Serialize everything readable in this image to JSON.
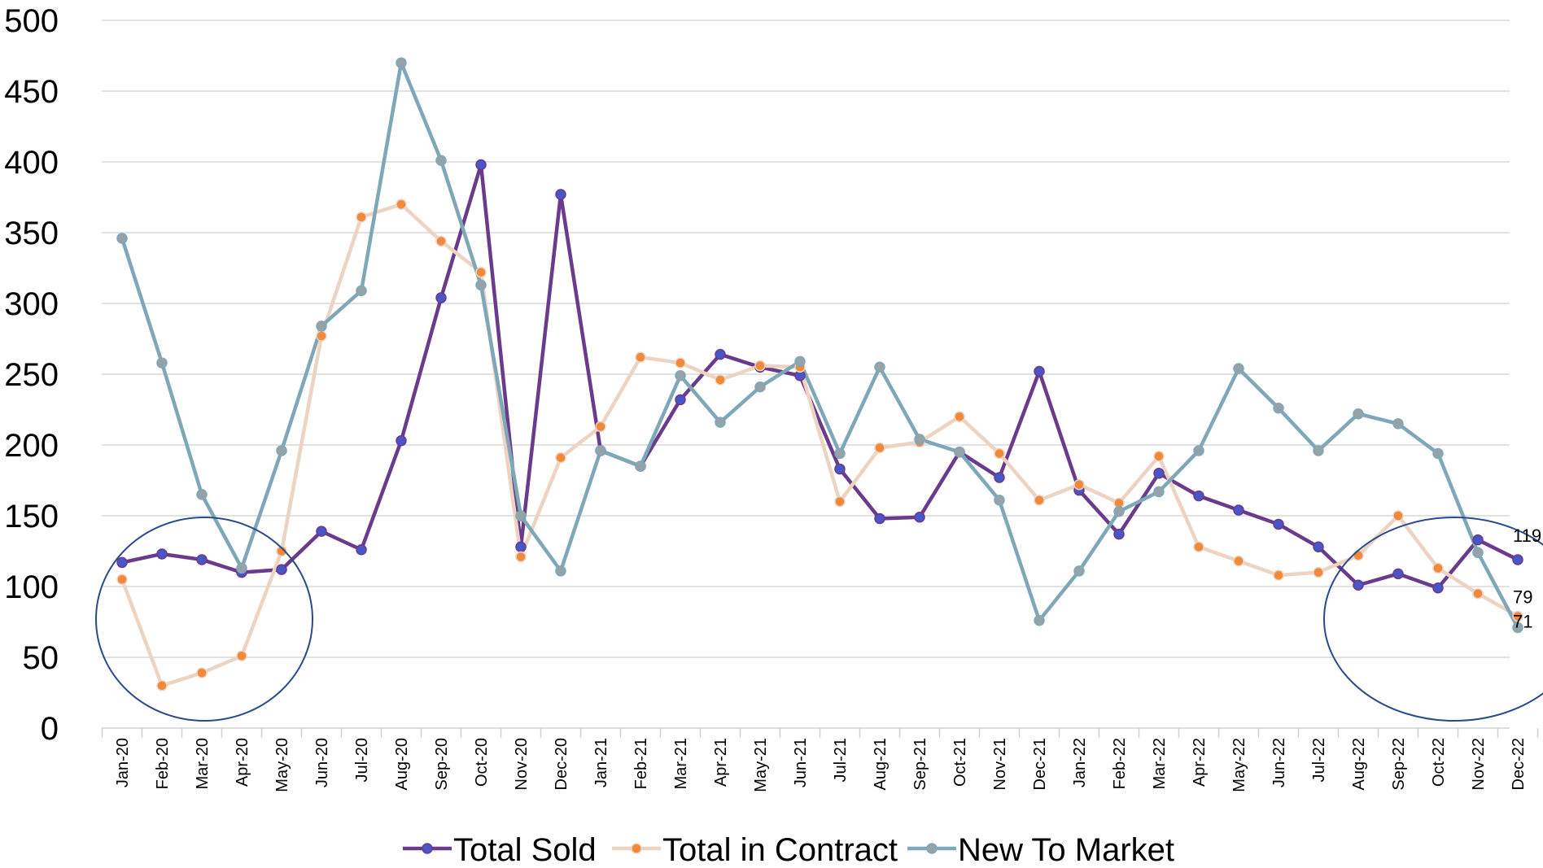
{
  "chart_data": {
    "type": "line",
    "categories": [
      "Jan-20",
      "Feb-20",
      "Mar-20",
      "Apr-20",
      "May-20",
      "Jun-20",
      "Jul-20",
      "Aug-20",
      "Sep-20",
      "Oct-20",
      "Nov-20",
      "Dec-20",
      "Jan-21",
      "Feb-21",
      "Mar-21",
      "Apr-21",
      "May-21",
      "Jun-21",
      "Jul-21",
      "Aug-21",
      "Sep-21",
      "Oct-21",
      "Nov-21",
      "Dec-21",
      "Jan-22",
      "Feb-22",
      "Mar-22",
      "Apr-22",
      "May-22",
      "Jun-22",
      "Jul-22",
      "Aug-22",
      "Sep-22",
      "Oct-22",
      "Nov-22",
      "Dec-22"
    ],
    "ylim": [
      0,
      500
    ],
    "yticks": [
      "0",
      "50",
      "100",
      "150",
      "200",
      "250",
      "300",
      "350",
      "400",
      "450",
      "500"
    ],
    "grid": true,
    "legend_position": "bottom",
    "series": [
      {
        "name": "Total Sold",
        "color": "#6a3a8c",
        "marker": "#4a55c8",
        "values": [
          117,
          123,
          119,
          110,
          112,
          139,
          126,
          203,
          304,
          398,
          128,
          377,
          196,
          185,
          232,
          264,
          255,
          249,
          183,
          148,
          149,
          195,
          177,
          252,
          168,
          137,
          180,
          164,
          154,
          144,
          128,
          101,
          109,
          99,
          133,
          119
        ]
      },
      {
        "name": "Total in Contract",
        "color": "#ecd3c2",
        "marker": "#f0893a",
        "values": [
          105,
          30,
          39,
          51,
          125,
          277,
          361,
          370,
          344,
          322,
          121,
          191,
          213,
          262,
          258,
          246,
          256,
          255,
          160,
          198,
          202,
          220,
          194,
          161,
          172,
          159,
          192,
          128,
          118,
          108,
          110,
          122,
          150,
          113,
          95,
          79
        ]
      },
      {
        "name": "New To Market",
        "color": "#7ea8b8",
        "marker": "#95a3a9",
        "values": [
          346,
          258,
          165,
          113,
          196,
          284,
          309,
          470,
          401,
          313,
          150,
          111,
          196,
          185,
          249,
          216,
          241,
          259,
          194,
          255,
          204,
          195,
          161,
          76,
          111,
          153,
          167,
          196,
          254,
          226,
          196,
          222,
          215,
          194,
          124,
          71
        ]
      }
    ],
    "data_labels": [
      {
        "series": "Total Sold",
        "category": "Dec-22",
        "text": "119"
      },
      {
        "series": "Total in Contract",
        "category": "Dec-22",
        "text": "79"
      },
      {
        "series": "New To Market",
        "category": "Dec-22",
        "text": "71"
      }
    ],
    "annotations": [
      {
        "type": "ellipse",
        "from": "Jan-20",
        "to": "May-20",
        "color": "#2a4a8c"
      },
      {
        "type": "ellipse",
        "from": "Aug-22",
        "to": "Dec-22",
        "color": "#2a4a8c"
      }
    ]
  }
}
